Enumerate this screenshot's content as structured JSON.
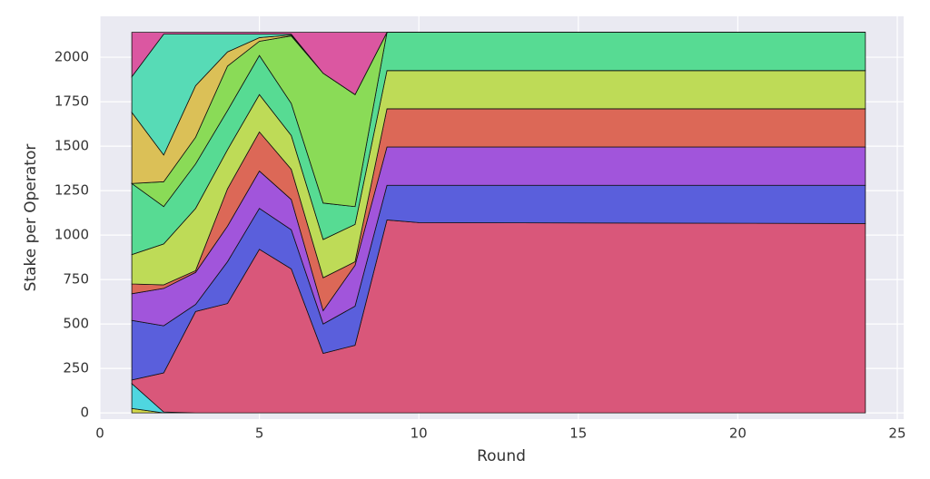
{
  "chart_data": {
    "type": "stacked_area",
    "xlabel": "Round",
    "ylabel": "Stake per Operator",
    "x": [
      1,
      2,
      3,
      4,
      5,
      6,
      7,
      8,
      9,
      10,
      24
    ],
    "series": [
      {
        "color": "#d4d94a",
        "values": [
          25,
          0,
          0,
          0,
          0,
          0,
          0,
          0,
          0,
          0,
          0
        ]
      },
      {
        "color": "#4fd6e0",
        "values": [
          140,
          5,
          0,
          0,
          0,
          0,
          0,
          0,
          0,
          0,
          0
        ]
      },
      {
        "color": "#d9577a",
        "values": [
          20,
          220,
          570,
          615,
          920,
          810,
          335,
          380,
          1085,
          1070,
          1065
        ]
      },
      {
        "color": "#5a5fdc",
        "values": [
          335,
          265,
          40,
          235,
          230,
          220,
          165,
          220,
          195,
          210,
          215
        ]
      },
      {
        "color": "#a155db",
        "values": [
          150,
          210,
          180,
          200,
          210,
          170,
          75,
          230,
          215,
          215,
          215
        ]
      },
      {
        "color": "#dc6857",
        "values": [
          55,
          20,
          10,
          210,
          220,
          170,
          185,
          20,
          215,
          215,
          215
        ]
      },
      {
        "color": "#bedb57",
        "values": [
          165,
          230,
          350,
          220,
          210,
          190,
          215,
          210,
          215,
          215,
          215
        ]
      },
      {
        "color": "#57db93",
        "values": [
          400,
          210,
          250,
          220,
          220,
          180,
          205,
          100,
          215,
          215,
          215
        ]
      },
      {
        "color": "#8adb57",
        "values": [
          0,
          140,
          150,
          250,
          80,
          380,
          730,
          630,
          0,
          0,
          0
        ]
      },
      {
        "color": "#dbc057",
        "values": [
          400,
          150,
          290,
          80,
          20,
          5,
          0,
          0,
          0,
          0,
          0
        ]
      },
      {
        "color": "#57dbb6",
        "values": [
          200,
          680,
          290,
          100,
          20,
          5,
          0,
          0,
          0,
          0,
          0
        ]
      },
      {
        "color": "#db57a1",
        "values": [
          250,
          10,
          10,
          10,
          10,
          10,
          230,
          350,
          0,
          0,
          0
        ]
      }
    ],
    "xlim": [
      0,
      25.2
    ],
    "ylim": [
      -35,
      2230
    ],
    "xticks": [
      0,
      5,
      10,
      15,
      20,
      25
    ],
    "yticks": [
      0,
      250,
      500,
      750,
      1000,
      1250,
      1500,
      1750,
      2000
    ],
    "grid": true,
    "background": "#eaeaf2"
  }
}
